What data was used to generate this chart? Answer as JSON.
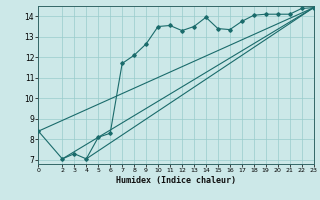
{
  "xlabel": "Humidex (Indice chaleur)",
  "bg_color": "#cce8e8",
  "line_color": "#1a6b6b",
  "grid_color": "#99cccc",
  "xlim": [
    0,
    23
  ],
  "ylim": [
    6.8,
    14.5
  ],
  "yticks": [
    7,
    8,
    9,
    10,
    11,
    12,
    13,
    14
  ],
  "xticks": [
    0,
    2,
    3,
    4,
    5,
    6,
    7,
    8,
    9,
    10,
    11,
    12,
    13,
    14,
    15,
    16,
    17,
    18,
    19,
    20,
    21,
    22,
    23
  ],
  "series1_x": [
    0,
    2,
    3,
    4,
    5,
    6,
    7,
    8,
    9,
    10,
    11,
    12,
    13,
    14,
    15,
    16,
    17,
    18,
    19,
    20,
    21,
    22,
    23
  ],
  "series1_y": [
    8.4,
    7.05,
    7.3,
    7.05,
    8.1,
    8.3,
    11.7,
    12.1,
    12.65,
    13.5,
    13.55,
    13.3,
    13.5,
    13.95,
    13.4,
    13.35,
    13.75,
    14.05,
    14.1,
    14.1,
    14.1,
    14.38,
    14.42
  ],
  "line1_x": [
    0,
    23
  ],
  "line1_y": [
    8.4,
    14.42
  ],
  "line2_x": [
    2,
    23
  ],
  "line2_y": [
    7.05,
    14.42
  ],
  "line3_x": [
    4,
    23
  ],
  "line3_y": [
    7.05,
    14.42
  ]
}
